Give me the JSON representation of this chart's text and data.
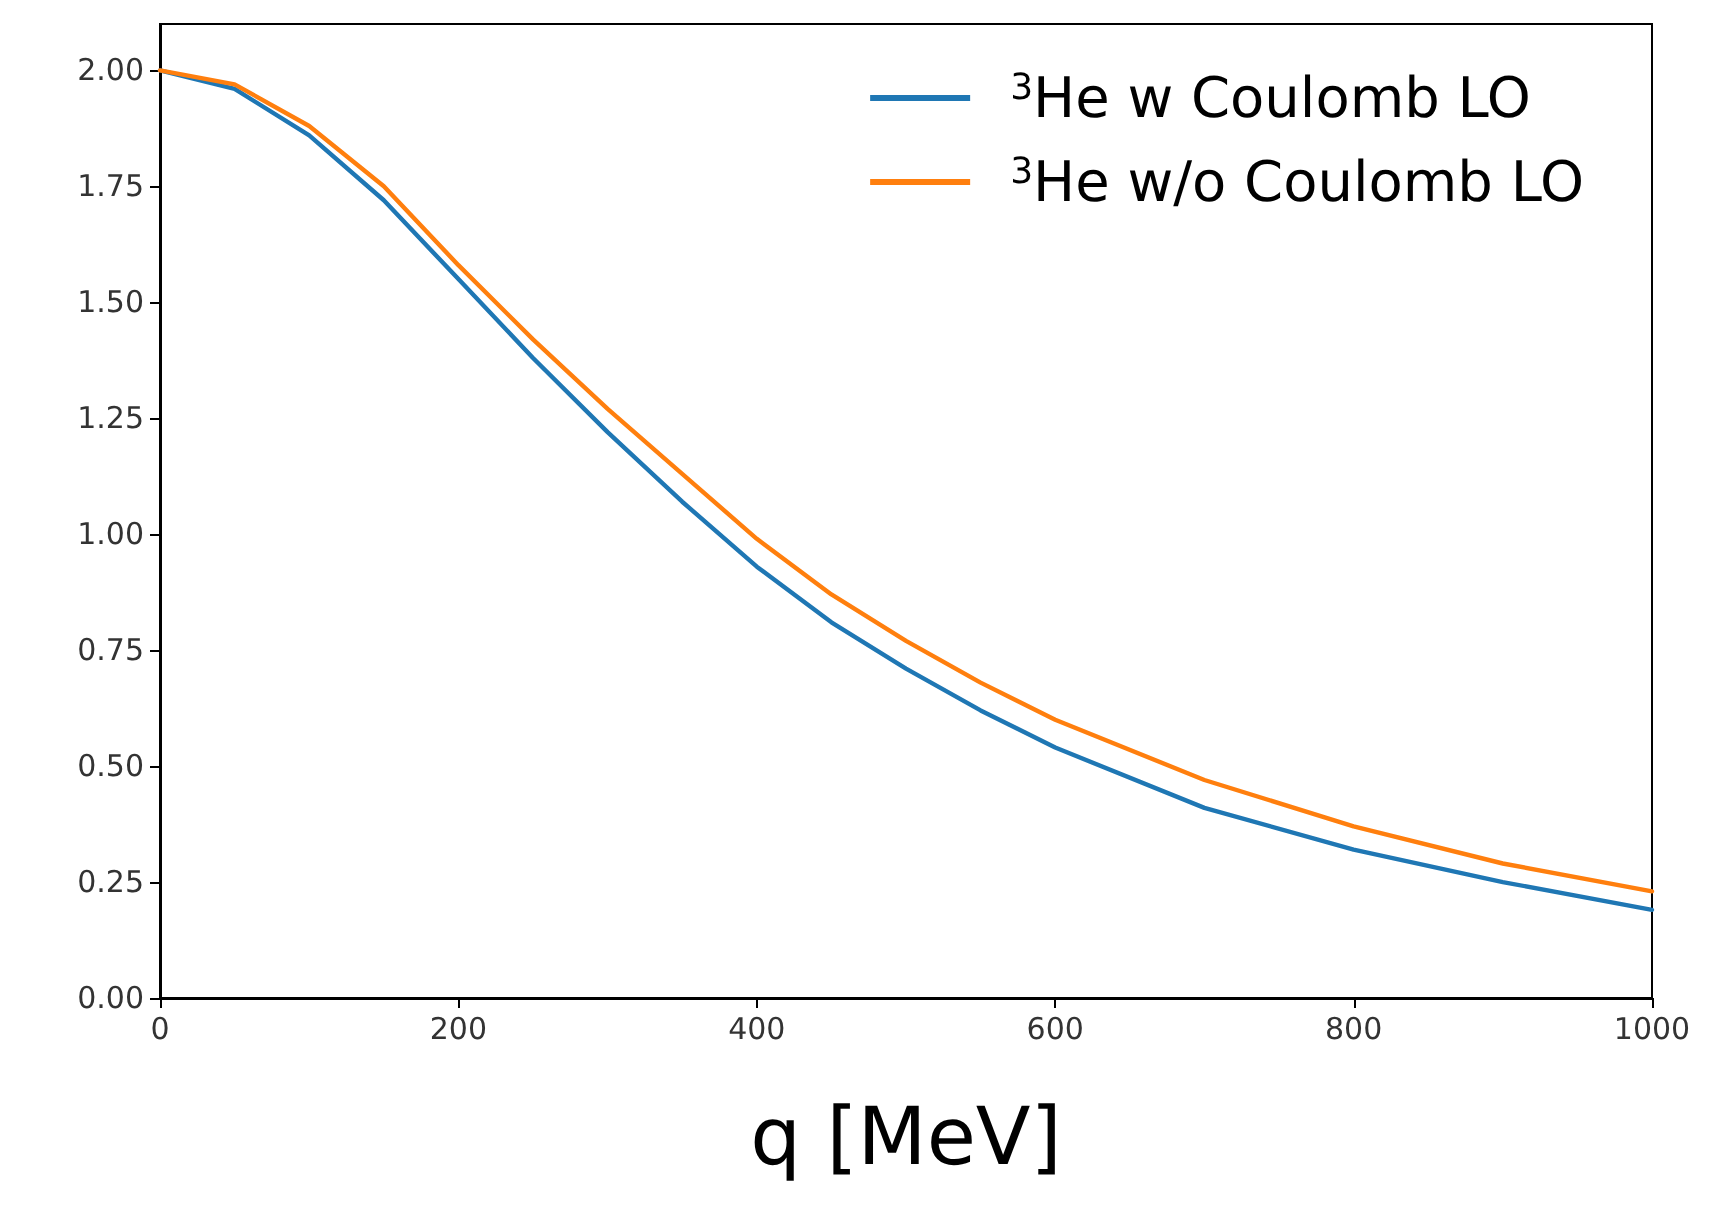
{
  "chart_data": {
    "type": "line",
    "xlabel": "q [MeV]",
    "x": [
      0,
      50,
      100,
      150,
      200,
      250,
      300,
      350,
      400,
      450,
      500,
      550,
      600,
      700,
      800,
      900,
      1000
    ],
    "series": [
      {
        "name": "$^{3}$He w Coulomb LO",
        "color": "#1f77b4",
        "values": [
          2.0,
          1.96,
          1.86,
          1.72,
          1.55,
          1.38,
          1.22,
          1.07,
          0.93,
          0.81,
          0.71,
          0.62,
          0.54,
          0.41,
          0.32,
          0.25,
          0.19
        ]
      },
      {
        "name": "$^{3}$He w/o Coulomb LO",
        "color": "#ff7f0e",
        "values": [
          2.0,
          1.97,
          1.88,
          1.75,
          1.58,
          1.42,
          1.27,
          1.13,
          0.99,
          0.87,
          0.77,
          0.68,
          0.6,
          0.47,
          0.37,
          0.29,
          0.23
        ]
      }
    ],
    "xlim": [
      0,
      1000
    ],
    "xticks": [
      0,
      200,
      400,
      600,
      800,
      1000
    ],
    "ylim": [
      0,
      2.1
    ],
    "yticks": [
      {
        "value": 0,
        "label": "0.00"
      },
      {
        "value": 0.25,
        "label": "0.25"
      },
      {
        "value": 0.5,
        "label": "0.50"
      },
      {
        "value": 0.75,
        "label": "0.75"
      },
      {
        "value": 1,
        "label": "1.00"
      },
      {
        "value": 1.25,
        "label": "1.25"
      },
      {
        "value": 1.5,
        "label": "1.50"
      },
      {
        "value": 1.75,
        "label": "1.75"
      },
      {
        "value": 2,
        "label": "2.00"
      }
    ],
    "grid": false,
    "legend": "top right",
    "marker": "none",
    "line_style": "solid"
  }
}
